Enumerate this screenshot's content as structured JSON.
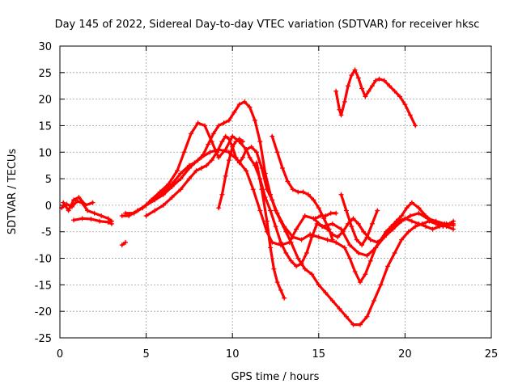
{
  "chart_data": {
    "type": "scatter",
    "title": "Day 145 of 2022, Sidereal Day-to-day VTEC variation (SDTVAR) for receiver hksc",
    "xlabel": "GPS time / hours",
    "ylabel": "SDTVAR / TECUs",
    "xlim": [
      0,
      25
    ],
    "ylim": [
      -25,
      30
    ],
    "xticks": [
      0,
      5,
      10,
      15,
      20,
      25
    ],
    "yticks": [
      -25,
      -20,
      -15,
      -10,
      -5,
      0,
      5,
      10,
      15,
      20,
      25,
      30
    ],
    "grid": true,
    "marker": "+",
    "color": "#ff0000",
    "series": [
      {
        "name": "s1",
        "x": [
          0.1,
          0.4,
          0.7,
          1.0,
          1.3,
          1.6,
          2.0,
          2.4,
          2.8,
          3.0
        ],
        "y": [
          -0.5,
          0.2,
          -0.3,
          0.8,
          0.4,
          -1.0,
          -1.5,
          -2.0,
          -2.5,
          -3.0
        ]
      },
      {
        "name": "s2",
        "x": [
          0.2,
          0.5,
          0.8,
          1.1,
          1.5,
          1.9
        ],
        "y": [
          0.5,
          -1.0,
          1.0,
          1.5,
          0.0,
          0.5
        ]
      },
      {
        "name": "s3",
        "x": [
          0.8,
          1.3,
          1.8,
          2.3,
          2.8,
          3.0
        ],
        "y": [
          -2.8,
          -2.5,
          -2.6,
          -3.0,
          -3.2,
          -3.5
        ]
      },
      {
        "name": "s4",
        "x": [
          3.6,
          3.8
        ],
        "y": [
          -7.5,
          -7.0
        ]
      },
      {
        "name": "s5",
        "x": [
          3.6,
          4.0,
          4.5,
          5.0,
          5.5,
          6.0,
          6.5,
          7.0,
          7.5,
          7.8,
          8.2,
          8.7,
          9.2,
          9.8,
          10.3,
          10.8,
          11.2,
          11.6,
          12.0,
          12.3,
          12.8,
          13.3,
          13.7,
          14.2,
          14.7,
          15.2,
          15.8,
          16.3,
          16.8,
          17.3,
          17.8,
          18.3,
          18.8,
          19.3,
          19.8,
          20.3,
          20.8,
          21.3,
          21.8,
          22.3,
          22.8
        ],
        "y": [
          -2.0,
          -2.0,
          -1.0,
          0.0,
          1.5,
          2.5,
          4.0,
          6.0,
          7.5,
          8.0,
          9.0,
          10.0,
          10.5,
          10.0,
          8.5,
          6.5,
          3.0,
          -1.0,
          -5.0,
          -7.0,
          -7.5,
          -7.0,
          -4.5,
          -2.0,
          -2.5,
          -4.0,
          -3.5,
          -4.5,
          -7.5,
          -9.0,
          -9.5,
          -8.0,
          -6.0,
          -4.5,
          -3.0,
          -2.0,
          -1.5,
          -2.5,
          -3.0,
          -3.5,
          -3.8
        ]
      },
      {
        "name": "s6",
        "x": [
          3.8,
          4.3,
          4.8,
          5.3,
          5.8,
          6.3,
          6.8,
          7.2,
          7.6,
          8.0,
          8.4,
          8.8,
          9.2,
          9.6,
          10.0,
          10.4,
          10.8,
          11.1,
          11.4,
          11.7,
          12.0,
          12.3,
          12.6,
          13.0,
          13.5,
          14.0,
          14.5,
          15.0,
          15.5,
          16.0,
          16.5,
          16.8,
          17.1,
          17.4,
          17.7,
          18.0,
          18.3,
          18.6,
          18.9,
          19.2,
          19.5,
          19.8,
          20.1,
          20.4,
          20.8,
          21.2,
          21.6,
          22.0,
          22.4,
          22.8
        ],
        "y": [
          -1.5,
          -1.5,
          -0.5,
          1.0,
          2.5,
          4.0,
          6.5,
          10.0,
          13.5,
          15.5,
          15.0,
          12.0,
          9.0,
          10.5,
          13.0,
          12.0,
          10.5,
          11.0,
          10.0,
          7.0,
          3.0,
          1.0,
          -1.5,
          -4.0,
          -6.0,
          -6.5,
          -5.5,
          -6.0,
          -6.5,
          -7.0,
          -8.0,
          -10.0,
          -12.5,
          -14.5,
          -13.0,
          -10.5,
          -8.0,
          -6.5,
          -5.0,
          -4.0,
          -3.0,
          -2.0,
          -0.5,
          0.5,
          -0.5,
          -2.0,
          -3.0,
          -3.5,
          -4.0,
          -4.5
        ]
      },
      {
        "name": "s7",
        "x": [
          4.5,
          5.0,
          5.5,
          6.0,
          6.5,
          7.0,
          7.5,
          8.0,
          8.3,
          8.6,
          8.9,
          9.2,
          9.5,
          9.8,
          10.1,
          10.4,
          10.7,
          11.0,
          11.3,
          11.6,
          11.9,
          12.2,
          12.5,
          12.8,
          13.1,
          13.4,
          13.8,
          14.2,
          14.6,
          15.0,
          15.4,
          15.8,
          16.2,
          16.6,
          17.0,
          17.4,
          17.8,
          18.2,
          18.6,
          19.0,
          19.4,
          19.8,
          20.2,
          20.6,
          21.0,
          21.4,
          21.8,
          22.2,
          22.6,
          22.8
        ],
        "y": [
          -1.0,
          0.0,
          1.0,
          2.0,
          3.5,
          5.0,
          7.0,
          8.5,
          9.5,
          11.5,
          13.5,
          15.0,
          15.5,
          16.0,
          17.5,
          19.0,
          19.5,
          18.5,
          16.0,
          12.0,
          6.0,
          2.0,
          -1.0,
          -3.0,
          -5.0,
          -7.0,
          -10.0,
          -12.0,
          -13.0,
          -15.0,
          -16.5,
          -18.0,
          -19.5,
          -21.0,
          -22.5,
          -22.5,
          -21.0,
          -18.0,
          -15.0,
          -11.5,
          -9.0,
          -6.5,
          -5.0,
          -4.0,
          -3.5,
          -3.0,
          -3.5,
          -4.0,
          -3.5,
          -3.0
        ]
      },
      {
        "name": "s8",
        "x": [
          5.0,
          5.5,
          6.0,
          6.5,
          7.0,
          7.5,
          7.9,
          8.2,
          8.5,
          8.8,
          9.1,
          9.4,
          9.6,
          9.8,
          10.0,
          10.2,
          10.4,
          10.6,
          10.8,
          11.0,
          11.3,
          11.6,
          11.9,
          12.2,
          12.5,
          12.8,
          13.1,
          13.4,
          13.7,
          14.0,
          14.3,
          14.6,
          14.9,
          15.2,
          15.5,
          15.8,
          16.1,
          16.4,
          16.7,
          17.0,
          17.3,
          17.6,
          18.0,
          18.4,
          18.8,
          19.2,
          19.6,
          20.0,
          20.4,
          20.8,
          21.2,
          21.6,
          22.0,
          22.4,
          22.8
        ],
        "y": [
          -2.0,
          -1.0,
          0.0,
          1.5,
          3.0,
          5.0,
          6.5,
          7.0,
          7.5,
          8.5,
          10.0,
          12.0,
          13.0,
          12.5,
          11.0,
          9.0,
          8.0,
          9.0,
          10.5,
          9.0,
          7.5,
          5.0,
          1.5,
          -1.0,
          -4.0,
          -7.0,
          -9.0,
          -10.5,
          -11.5,
          -11.0,
          -9.0,
          -6.0,
          -3.5,
          -4.0,
          -4.5,
          -5.5,
          -6.0,
          -5.0,
          -3.5,
          -2.5,
          -3.5,
          -5.0,
          -6.5,
          -7.0,
          -6.0,
          -4.5,
          -3.0,
          -2.5,
          -3.0,
          -3.5,
          -4.0,
          -4.5,
          -4.0,
          -3.5,
          -3.5
        ]
      },
      {
        "name": "s9",
        "x": [
          9.2,
          9.4,
          9.6,
          9.8,
          10.0,
          10.2,
          10.4,
          10.6
        ],
        "y": [
          -0.5,
          2.0,
          5.5,
          8.5,
          11.0,
          12.0,
          12.5,
          12.0
        ]
      },
      {
        "name": "s10",
        "x": [
          11.4,
          11.7,
          12.0,
          12.2,
          12.4,
          12.6,
          12.8,
          13.0
        ],
        "y": [
          8.0,
          3.0,
          -3.0,
          -8.0,
          -12.0,
          -14.5,
          -16.0,
          -17.5
        ]
      },
      {
        "name": "s11",
        "x": [
          12.3,
          12.6,
          12.9,
          13.2,
          13.5,
          13.8,
          14.1,
          14.4,
          14.7,
          15.0,
          15.3,
          15.6,
          15.8
        ],
        "y": [
          13.0,
          10.0,
          7.0,
          4.5,
          3.0,
          2.5,
          2.5,
          2.0,
          1.0,
          -0.5,
          -2.5,
          -4.5,
          -6.5
        ]
      },
      {
        "name": "s12",
        "x": [
          14.8,
          15.1,
          15.4,
          15.7,
          16.0
        ],
        "y": [
          -2.5,
          -2.0,
          -2.0,
          -1.5,
          -1.5
        ]
      },
      {
        "name": "s13",
        "x": [
          16.0,
          16.2,
          16.3,
          16.5,
          16.7,
          16.9,
          17.1,
          17.3,
          17.5,
          17.7,
          17.9,
          18.1,
          18.3,
          18.5,
          18.8,
          19.1,
          19.4,
          19.7,
          20.0,
          20.3,
          20.6
        ],
        "y": [
          21.5,
          18.0,
          17.0,
          19.5,
          22.5,
          24.5,
          25.5,
          24.0,
          22.0,
          20.5,
          21.5,
          22.5,
          23.5,
          23.8,
          23.5,
          22.5,
          21.5,
          20.5,
          19.0,
          17.0,
          15.0
        ]
      },
      {
        "name": "s14",
        "x": [
          16.3,
          16.6,
          16.9,
          17.2,
          17.5,
          17.8,
          18.1,
          18.4
        ],
        "y": [
          2.0,
          -1.0,
          -4.0,
          -6.5,
          -7.5,
          -6.0,
          -3.5,
          -1.0
        ]
      }
    ]
  }
}
